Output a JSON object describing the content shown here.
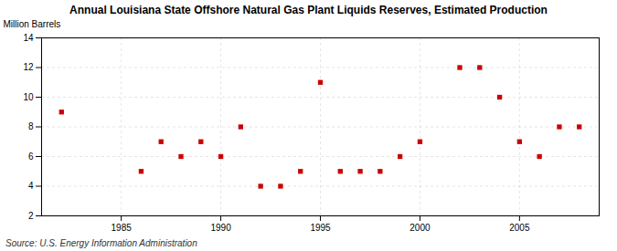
{
  "chart_data": {
    "type": "scatter",
    "title": "Annual Louisiana State Offshore Natural Gas Plant Liquids Reserves, Estimated Production",
    "ylabel": "Million Barrels",
    "annotations": [
      "Source: U.S. Energy Information Administration"
    ],
    "x": [
      1982,
      1986,
      1987,
      1988,
      1989,
      1990,
      1991,
      1992,
      1993,
      1994,
      1995,
      1996,
      1997,
      1998,
      1999,
      2000,
      2002,
      2003,
      2004,
      2005,
      2006,
      2007,
      2008
    ],
    "values": [
      9,
      5,
      7,
      6,
      7,
      6,
      8,
      4,
      4,
      5,
      11,
      5,
      5,
      5,
      6,
      7,
      12,
      12,
      10,
      7,
      6,
      8,
      8
    ],
    "color": "#cc0000",
    "marker": "square",
    "xlim": [
      1981,
      2009
    ],
    "xticks": [
      1985,
      1990,
      1995,
      2000,
      2005
    ],
    "ylim": [
      2,
      14
    ],
    "yticks": [
      2,
      4,
      6,
      8,
      10,
      12,
      14
    ],
    "grid": true
  }
}
